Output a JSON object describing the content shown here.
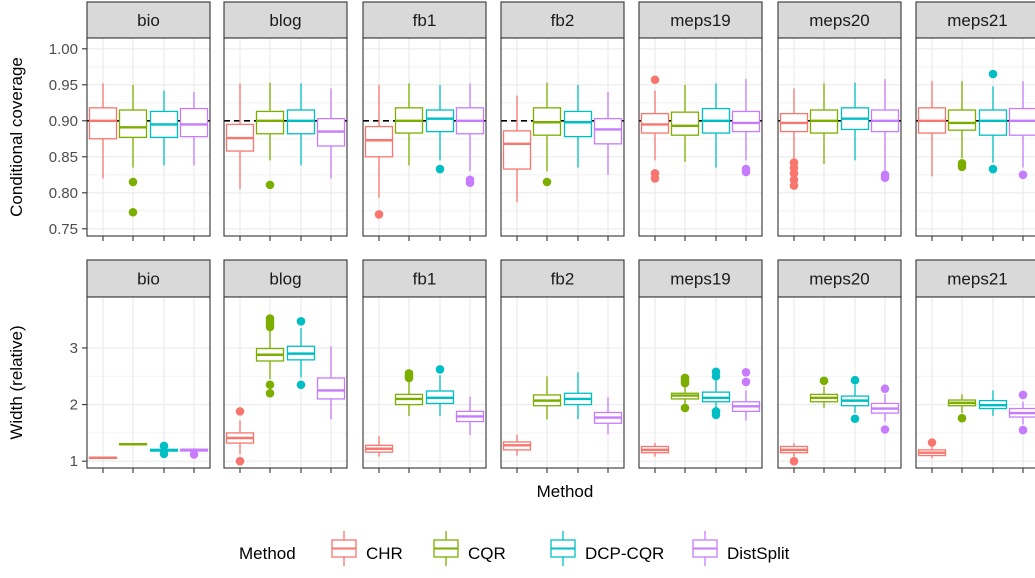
{
  "chart_data": {
    "type": "boxplot",
    "xlabel": "Method",
    "datasets": [
      "bio",
      "blog",
      "fb1",
      "fb2",
      "meps19",
      "meps20",
      "meps21"
    ],
    "methods": [
      "CHR",
      "CQR",
      "DCP-CQR",
      "DistSplit"
    ],
    "colors": {
      "CHR": "#F8766D",
      "CQR": "#7CAE00",
      "DCP-CQR": "#00BFC4",
      "DistSplit": "#C77CFF"
    },
    "legend": {
      "title": "Method",
      "position": "bottom",
      "items": [
        "CHR",
        "CQR",
        "DCP-CQR",
        "DistSplit"
      ]
    },
    "grid": true,
    "panels": [
      {
        "ylabel": "Conditional coverage",
        "ylim": [
          0.74,
          1.015
        ],
        "yticks": [
          0.75,
          0.8,
          0.85,
          0.9,
          0.95,
          1.0
        ],
        "ytick_labels": [
          "0.75",
          "0.80",
          "0.85",
          "0.90",
          "0.95",
          "1.00"
        ],
        "reference_line": 0.9,
        "boxes": {
          "bio": [
            {
              "q1": 0.875,
              "median": 0.9,
              "q3": 0.918,
              "low": 0.82,
              "high": 0.952,
              "outliers": []
            },
            {
              "q1": 0.877,
              "median": 0.891,
              "q3": 0.915,
              "low": 0.835,
              "high": 0.95,
              "outliers": [
                0.815,
                0.773
              ]
            },
            {
              "q1": 0.877,
              "median": 0.895,
              "q3": 0.913,
              "low": 0.838,
              "high": 0.942,
              "outliers": []
            },
            {
              "q1": 0.878,
              "median": 0.895,
              "q3": 0.917,
              "low": 0.838,
              "high": 0.94,
              "outliers": []
            }
          ],
          "blog": [
            {
              "q1": 0.858,
              "median": 0.876,
              "q3": 0.895,
              "low": 0.805,
              "high": 0.952,
              "outliers": []
            },
            {
              "q1": 0.882,
              "median": 0.9,
              "q3": 0.913,
              "low": 0.845,
              "high": 0.953,
              "outliers": [
                0.811
              ]
            },
            {
              "q1": 0.882,
              "median": 0.9,
              "q3": 0.915,
              "low": 0.838,
              "high": 0.952,
              "outliers": []
            },
            {
              "q1": 0.865,
              "median": 0.885,
              "q3": 0.903,
              "low": 0.82,
              "high": 0.945,
              "outliers": []
            }
          ],
          "fb1": [
            {
              "q1": 0.85,
              "median": 0.873,
              "q3": 0.892,
              "low": 0.793,
              "high": 0.95,
              "outliers": [
                0.77
              ]
            },
            {
              "q1": 0.883,
              "median": 0.9,
              "q3": 0.918,
              "low": 0.838,
              "high": 0.952,
              "outliers": []
            },
            {
              "q1": 0.885,
              "median": 0.903,
              "q3": 0.915,
              "low": 0.845,
              "high": 0.95,
              "outliers": [
                0.833
              ]
            },
            {
              "q1": 0.882,
              "median": 0.9,
              "q3": 0.918,
              "low": 0.83,
              "high": 0.952,
              "outliers": [
                0.818,
                0.814
              ]
            }
          ],
          "fb2": [
            {
              "q1": 0.833,
              "median": 0.868,
              "q3": 0.886,
              "low": 0.787,
              "high": 0.935,
              "outliers": []
            },
            {
              "q1": 0.88,
              "median": 0.898,
              "q3": 0.918,
              "low": 0.83,
              "high": 0.953,
              "outliers": [
                0.815
              ]
            },
            {
              "q1": 0.878,
              "median": 0.898,
              "q3": 0.913,
              "low": 0.835,
              "high": 0.95,
              "outliers": []
            },
            {
              "q1": 0.868,
              "median": 0.888,
              "q3": 0.903,
              "low": 0.825,
              "high": 0.94,
              "outliers": []
            }
          ],
          "meps19": [
            {
              "q1": 0.883,
              "median": 0.895,
              "q3": 0.91,
              "low": 0.845,
              "high": 0.942,
              "outliers": [
                0.957,
                0.827,
                0.82
              ]
            },
            {
              "q1": 0.88,
              "median": 0.893,
              "q3": 0.912,
              "low": 0.843,
              "high": 0.95,
              "outliers": []
            },
            {
              "q1": 0.883,
              "median": 0.9,
              "q3": 0.917,
              "low": 0.835,
              "high": 0.952,
              "outliers": []
            },
            {
              "q1": 0.885,
              "median": 0.897,
              "q3": 0.913,
              "low": 0.845,
              "high": 0.958,
              "outliers": [
                0.833,
                0.829
              ]
            }
          ],
          "meps20": [
            {
              "q1": 0.885,
              "median": 0.897,
              "q3": 0.91,
              "low": 0.848,
              "high": 0.945,
              "outliers": [
                0.842,
                0.835,
                0.827,
                0.818,
                0.81
              ]
            },
            {
              "q1": 0.883,
              "median": 0.9,
              "q3": 0.915,
              "low": 0.84,
              "high": 0.952,
              "outliers": []
            },
            {
              "q1": 0.888,
              "median": 0.903,
              "q3": 0.918,
              "low": 0.845,
              "high": 0.953,
              "outliers": []
            },
            {
              "q1": 0.885,
              "median": 0.9,
              "q3": 0.915,
              "low": 0.83,
              "high": 0.958,
              "outliers": [
                0.825,
                0.821
              ]
            }
          ],
          "meps21": [
            {
              "q1": 0.883,
              "median": 0.9,
              "q3": 0.918,
              "low": 0.823,
              "high": 0.955,
              "outliers": []
            },
            {
              "q1": 0.887,
              "median": 0.897,
              "q3": 0.915,
              "low": 0.848,
              "high": 0.955,
              "outliers": [
                0.841,
                0.836
              ]
            },
            {
              "q1": 0.88,
              "median": 0.9,
              "q3": 0.915,
              "low": 0.842,
              "high": 0.948,
              "outliers": [
                0.965,
                0.833
              ]
            },
            {
              "q1": 0.88,
              "median": 0.9,
              "q3": 0.917,
              "low": 0.835,
              "high": 0.955,
              "outliers": [
                0.825
              ]
            }
          ]
        }
      },
      {
        "ylabel": "Width (relative)",
        "ylim": [
          0.88,
          3.9
        ],
        "yticks": [
          1,
          2,
          3
        ],
        "ytick_labels": [
          "1",
          "2",
          "3"
        ],
        "reference_line": null,
        "boxes": {
          "bio": [
            {
              "q1": 1.05,
              "median": 1.06,
              "q3": 1.07,
              "low": 1.04,
              "high": 1.08,
              "outliers": []
            },
            {
              "q1": 1.29,
              "median": 1.3,
              "q3": 1.31,
              "low": 1.28,
              "high": 1.32,
              "outliers": []
            },
            {
              "q1": 1.18,
              "median": 1.19,
              "q3": 1.21,
              "low": 1.15,
              "high": 1.24,
              "outliers": [
                1.27,
                1.13
              ]
            },
            {
              "q1": 1.18,
              "median": 1.2,
              "q3": 1.21,
              "low": 1.16,
              "high": 1.23,
              "outliers": [
                1.12
              ]
            }
          ],
          "blog": [
            {
              "q1": 1.32,
              "median": 1.41,
              "q3": 1.5,
              "low": 1.12,
              "high": 1.72,
              "outliers": [
                1.88,
                1.0
              ]
            },
            {
              "q1": 2.77,
              "median": 2.88,
              "q3": 2.99,
              "low": 2.45,
              "high": 3.3,
              "outliers": [
                3.52,
                3.47,
                3.42,
                3.37,
                2.35,
                2.2
              ]
            },
            {
              "q1": 2.79,
              "median": 2.9,
              "q3": 3.03,
              "low": 2.48,
              "high": 3.35,
              "outliers": [
                3.47,
                2.35
              ]
            },
            {
              "q1": 2.1,
              "median": 2.25,
              "q3": 2.47,
              "low": 1.74,
              "high": 3.03,
              "outliers": []
            }
          ],
          "fb1": [
            {
              "q1": 1.16,
              "median": 1.22,
              "q3": 1.28,
              "low": 1.08,
              "high": 1.44,
              "outliers": []
            },
            {
              "q1": 2.0,
              "median": 2.1,
              "q3": 2.18,
              "low": 1.8,
              "high": 2.42,
              "outliers": [
                2.55,
                2.51,
                2.47
              ]
            },
            {
              "q1": 2.02,
              "median": 2.12,
              "q3": 2.24,
              "low": 1.8,
              "high": 2.52,
              "outliers": [
                2.62
              ]
            },
            {
              "q1": 1.7,
              "median": 1.79,
              "q3": 1.88,
              "low": 1.46,
              "high": 2.14,
              "outliers": []
            }
          ],
          "fb2": [
            {
              "q1": 1.2,
              "median": 1.28,
              "q3": 1.34,
              "low": 1.1,
              "high": 1.47,
              "outliers": []
            },
            {
              "q1": 1.98,
              "median": 2.07,
              "q3": 2.17,
              "low": 1.74,
              "high": 2.5,
              "outliers": []
            },
            {
              "q1": 2.0,
              "median": 2.1,
              "q3": 2.2,
              "low": 1.74,
              "high": 2.57,
              "outliers": []
            },
            {
              "q1": 1.67,
              "median": 1.77,
              "q3": 1.86,
              "low": 1.48,
              "high": 2.13,
              "outliers": []
            }
          ],
          "meps19": [
            {
              "q1": 1.15,
              "median": 1.2,
              "q3": 1.26,
              "low": 1.08,
              "high": 1.32,
              "outliers": []
            },
            {
              "q1": 2.1,
              "median": 2.16,
              "q3": 2.2,
              "low": 1.98,
              "high": 2.32,
              "outliers": [
                2.47,
                2.43,
                2.38,
                1.94
              ]
            },
            {
              "q1": 2.05,
              "median": 2.12,
              "q3": 2.22,
              "low": 1.94,
              "high": 2.42,
              "outliers": [
                2.58,
                2.5,
                1.88,
                1.82
              ]
            },
            {
              "q1": 1.88,
              "median": 1.97,
              "q3": 2.05,
              "low": 1.72,
              "high": 2.25,
              "outliers": [
                2.57,
                2.4
              ]
            }
          ],
          "meps20": [
            {
              "q1": 1.15,
              "median": 1.2,
              "q3": 1.26,
              "low": 1.08,
              "high": 1.32,
              "outliers": [
                1.0
              ]
            },
            {
              "q1": 2.05,
              "median": 2.12,
              "q3": 2.18,
              "low": 1.94,
              "high": 2.32,
              "outliers": [
                2.42
              ]
            },
            {
              "q1": 1.98,
              "median": 2.07,
              "q3": 2.15,
              "low": 1.85,
              "high": 2.35,
              "outliers": [
                2.43,
                1.75
              ]
            },
            {
              "q1": 1.85,
              "median": 1.93,
              "q3": 2.02,
              "low": 1.7,
              "high": 2.18,
              "outliers": [
                2.28,
                1.56
              ]
            }
          ],
          "meps21": [
            {
              "q1": 1.1,
              "median": 1.15,
              "q3": 1.2,
              "low": 1.05,
              "high": 1.28,
              "outliers": [
                1.33
              ]
            },
            {
              "q1": 1.98,
              "median": 2.03,
              "q3": 2.08,
              "low": 1.85,
              "high": 2.18,
              "outliers": [
                1.76
              ]
            },
            {
              "q1": 1.93,
              "median": 1.99,
              "q3": 2.07,
              "low": 1.8,
              "high": 2.25,
              "outliers": []
            },
            {
              "q1": 1.78,
              "median": 1.85,
              "q3": 1.93,
              "low": 1.65,
              "high": 2.05,
              "outliers": [
                2.17,
                1.55
              ]
            }
          ]
        }
      }
    ]
  }
}
